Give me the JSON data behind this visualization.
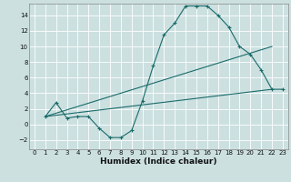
{
  "xlabel": "Humidex (Indice chaleur)",
  "bg_color": "#cce0e0",
  "grid_color": "#ffffff",
  "line_color": "#1a6b6b",
  "xlim": [
    -0.5,
    23.5
  ],
  "ylim": [
    -3.2,
    15.5
  ],
  "xticks": [
    0,
    1,
    2,
    3,
    4,
    5,
    6,
    7,
    8,
    9,
    10,
    11,
    12,
    13,
    14,
    15,
    16,
    17,
    18,
    19,
    20,
    21,
    22,
    23
  ],
  "yticks": [
    -2,
    0,
    2,
    4,
    6,
    8,
    10,
    12,
    14
  ],
  "curve1_x": [
    1,
    2,
    3,
    4,
    5,
    6,
    7,
    8,
    9,
    10,
    11,
    12,
    13,
    14,
    15,
    16,
    17,
    18,
    19,
    20,
    21,
    22,
    23
  ],
  "curve1_y": [
    1.0,
    2.8,
    0.8,
    1.0,
    1.0,
    -0.5,
    -1.7,
    -1.7,
    -0.8,
    3.0,
    7.5,
    11.5,
    13.0,
    15.2,
    15.2,
    15.2,
    14.0,
    12.5,
    10.0,
    9.0,
    7.0,
    4.5,
    4.5
  ],
  "curve2_x": [
    1,
    22
  ],
  "curve2_y": [
    1.0,
    10.0
  ],
  "curve3_x": [
    1,
    22
  ],
  "curve3_y": [
    1.0,
    4.5
  ]
}
